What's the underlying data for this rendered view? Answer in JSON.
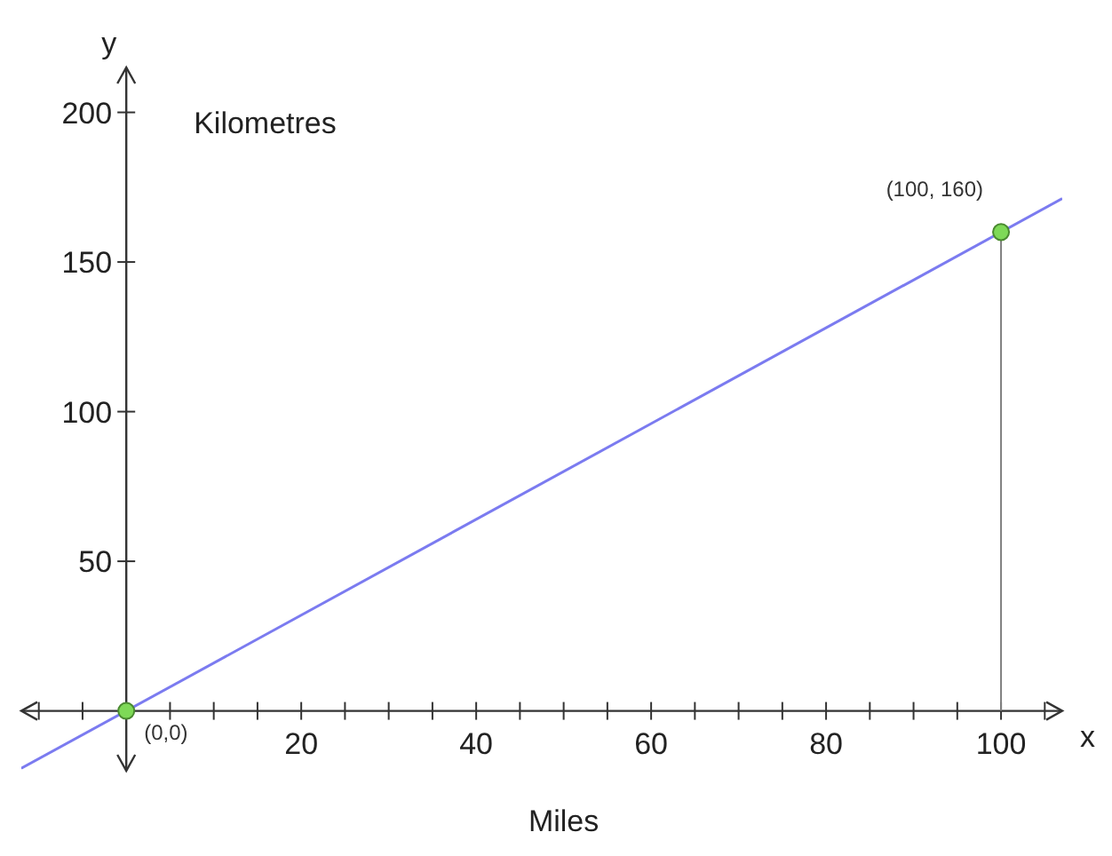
{
  "chart_data": {
    "type": "line",
    "xlabel": "Miles",
    "ylabel": "Kilometres",
    "xlim": [
      -12,
      107
    ],
    "ylim": [
      -20,
      215
    ],
    "xticks": [
      {
        "value": -10,
        "label": null
      },
      {
        "value": -5,
        "label": null
      },
      {
        "value": 5,
        "label": null
      },
      {
        "value": 10,
        "label": null
      },
      {
        "value": 15,
        "label": null
      },
      20,
      {
        "value": 25,
        "label": null
      },
      {
        "value": 30,
        "label": null
      },
      {
        "value": 35,
        "label": null
      },
      40,
      {
        "value": 45,
        "label": null
      },
      {
        "value": 50,
        "label": null
      },
      {
        "value": 55,
        "label": null
      },
      60,
      {
        "value": 65,
        "label": null
      },
      {
        "value": 70,
        "label": null
      },
      {
        "value": 75,
        "label": null
      },
      80,
      {
        "value": 85,
        "label": null
      },
      {
        "value": 90,
        "label": null
      },
      {
        "value": 95,
        "label": null
      },
      100,
      {
        "value": 105,
        "label": null
      }
    ],
    "yticks": [
      50,
      100,
      150,
      200
    ],
    "grid": false,
    "marker": "none",
    "line_style": "solid",
    "series": [
      {
        "color": "#7b7bf0",
        "x": [
          -12,
          107
        ],
        "values": [
          -19.2,
          171.2
        ]
      },
      {
        "type": "line",
        "color": "#808080",
        "x": [
          100,
          100
        ],
        "values": [
          0,
          160
        ]
      },
      {
        "type": "scatter",
        "color": "#7ed957",
        "marker": "circle",
        "x": [
          0,
          100
        ],
        "values": [
          0,
          160
        ]
      }
    ],
    "annotations": [
      {
        "text": "(0,0)",
        "x": 0,
        "y": 0
      },
      {
        "text": "(100, 160)",
        "x": 100,
        "y": 160
      },
      "x",
      "y"
    ]
  }
}
